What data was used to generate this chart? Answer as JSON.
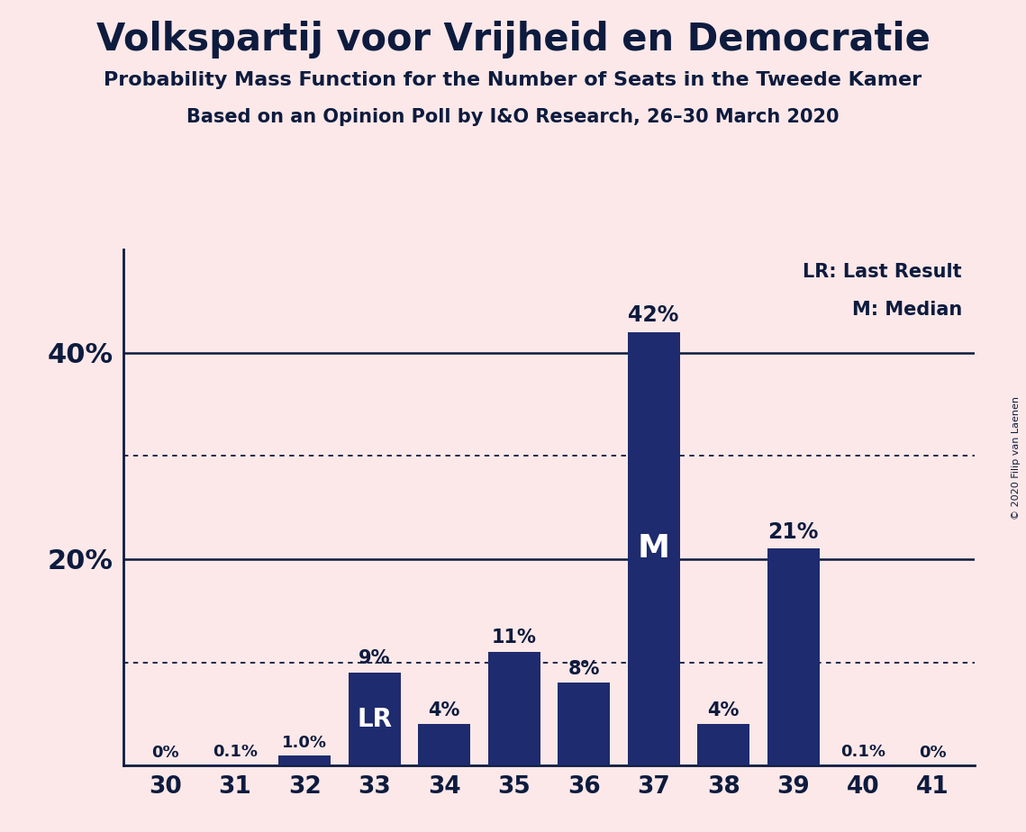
{
  "title": "Volkspartij voor Vrijheid en Democratie",
  "subtitle1": "Probability Mass Function for the Number of Seats in the Tweede Kamer",
  "subtitle2": "Based on an Opinion Poll by I&O Research, 26–30 March 2020",
  "copyright": "© 2020 Filip van Laenen",
  "categories": [
    30,
    31,
    32,
    33,
    34,
    35,
    36,
    37,
    38,
    39,
    40,
    41
  ],
  "values": [
    0.0,
    0.1,
    1.0,
    9.0,
    4.0,
    11.0,
    8.0,
    42.0,
    4.0,
    21.0,
    0.1,
    0.0
  ],
  "labels": [
    "0%",
    "0.1%",
    "1.0%",
    "9%",
    "4%",
    "11%",
    "8%",
    "42%",
    "4%",
    "21%",
    "0.1%",
    "0%"
  ],
  "bar_color": "#1e2b6e",
  "background_color": "#fce8e8",
  "text_color": "#0d1b3e",
  "lr_index": 3,
  "median_index": 7,
  "legend_lr": "LR: Last Result",
  "legend_m": "M: Median",
  "yticks": [
    20,
    40
  ],
  "ytick_labels": [
    "20%",
    "40%"
  ],
  "ylim": [
    0,
    50
  ],
  "dotted_grid_values": [
    10,
    30
  ],
  "solid_grid_values": [
    20,
    40
  ]
}
